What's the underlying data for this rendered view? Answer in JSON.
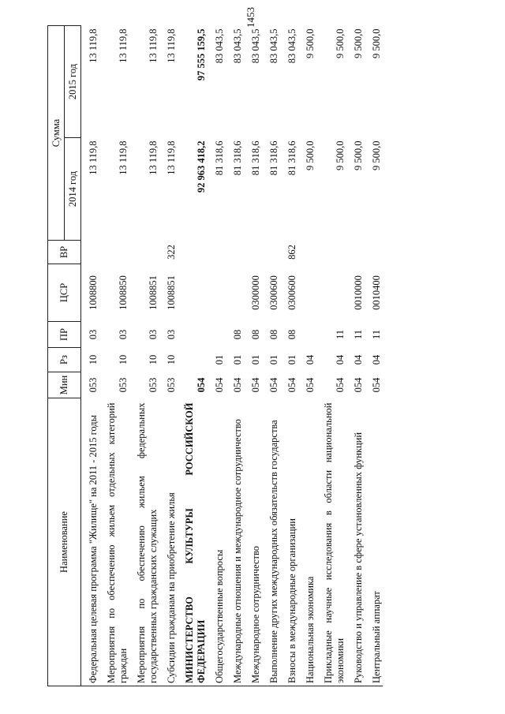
{
  "page_number": "1453",
  "headers": {
    "name": "Наименование",
    "min": "Мин",
    "rz": "Рз",
    "pr": "ПР",
    "csr": "ЦСР",
    "vr": "ВР",
    "sum": "Сумма",
    "y2014": "2014 год",
    "y2015": "2015 год"
  },
  "rows": [
    {
      "name": "Федеральная целевая программа \"Жилище\" на 2011 - 2015 годы",
      "min": "053",
      "rz": "10",
      "pr": "03",
      "csr": "1008800",
      "vr": "",
      "y2014": "13 119,8",
      "y2015": "13 119,8"
    },
    {
      "name": "Мероприятия по обеспечению жильем отдельных категорий граждан",
      "min": "053",
      "rz": "10",
      "pr": "03",
      "csr": "1008850",
      "vr": "",
      "y2014": "13 119,8",
      "y2015": "13 119,8"
    },
    {
      "name": "Мероприятия по обеспечению жильем федеральных государственных гражданских служащих",
      "min": "053",
      "rz": "10",
      "pr": "03",
      "csr": "1008851",
      "vr": "",
      "y2014": "13 119,8",
      "y2015": "13 119,8"
    },
    {
      "name": "Субсидии гражданам на приобретение жилья",
      "min": "053",
      "rz": "10",
      "pr": "03",
      "csr": "1008851",
      "vr": "322",
      "y2014": "13 119,8",
      "y2015": "13 119,8"
    },
    {
      "name": "МИНИСТЕРСТВО КУЛЬТУРЫ РОССИЙСКОЙ ФЕДЕРАЦИИ",
      "min": "054",
      "rz": "",
      "pr": "",
      "csr": "",
      "vr": "",
      "y2014": "92 963 418,2",
      "y2015": "97 555 159,5",
      "bold": true
    },
    {
      "name": "Общегосударственные вопросы",
      "min": "054",
      "rz": "01",
      "pr": "",
      "csr": "",
      "vr": "",
      "y2014": "81 318,6",
      "y2015": "83 043,5"
    },
    {
      "name": "Международные отношения и международное сотрудничество",
      "min": "054",
      "rz": "01",
      "pr": "08",
      "csr": "",
      "vr": "",
      "y2014": "81 318,6",
      "y2015": "83 043,5"
    },
    {
      "name": "Международное сотрудничество",
      "min": "054",
      "rz": "01",
      "pr": "08",
      "csr": "0300000",
      "vr": "",
      "y2014": "81 318,6",
      "y2015": "83 043,5"
    },
    {
      "name": "Выполнение других международных обязательств государства",
      "min": "054",
      "rz": "01",
      "pr": "08",
      "csr": "0300600",
      "vr": "",
      "y2014": "81 318,6",
      "y2015": "83 043,5"
    },
    {
      "name": "Взносы в международные организации",
      "min": "054",
      "rz": "01",
      "pr": "08",
      "csr": "0300600",
      "vr": "862",
      "y2014": "81 318,6",
      "y2015": "83 043,5"
    },
    {
      "name": "Национальная экономика",
      "min": "054",
      "rz": "04",
      "pr": "",
      "csr": "",
      "vr": "",
      "y2014": "9 500,0",
      "y2015": "9 500,0"
    },
    {
      "name": "Прикладные научные исследования в области национальной экономики",
      "min": "054",
      "rz": "04",
      "pr": "11",
      "csr": "",
      "vr": "",
      "y2014": "9 500,0",
      "y2015": "9 500,0"
    },
    {
      "name": "Руководство и управление в сфере установленных функций",
      "min": "054",
      "rz": "04",
      "pr": "11",
      "csr": "0010000",
      "vr": "",
      "y2014": "9 500,0",
      "y2015": "9 500,0"
    },
    {
      "name": "Центральный аппарат",
      "min": "054",
      "rz": "04",
      "pr": "11",
      "csr": "0010400",
      "vr": "",
      "y2014": "9 500,0",
      "y2015": "9 500,0"
    }
  ]
}
